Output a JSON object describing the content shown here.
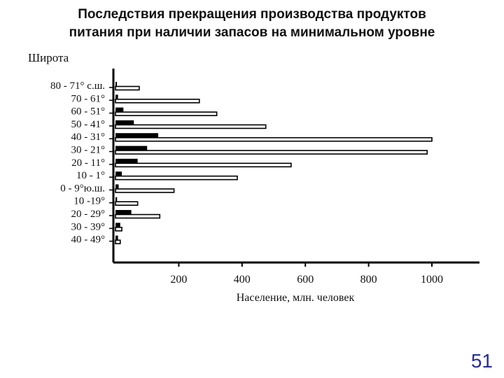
{
  "slide": {
    "title_line1": "Последствия прекращения производства продуктов",
    "title_line2": "питания  при наличии  запасов на минимальном уровне",
    "page_number": "51"
  },
  "chart_data": {
    "type": "bar",
    "orientation": "horizontal",
    "ylabel": "Широта",
    "xlabel": "Население,  млн.  человек",
    "xlim": [
      0,
      1150
    ],
    "x_ticks": [
      200,
      400,
      600,
      800,
      1000
    ],
    "categories": [
      "80 - 71° с.ш.",
      "70 - 61°",
      "60 - 51°",
      "50 - 41°",
      "40 - 31°",
      "30 - 21°",
      "20 - 11°",
      "10 - 1°",
      "0  - 9°ю.ш.",
      "10 -19°",
      "20 - 29°",
      "30 - 39°",
      "40 - 49°"
    ],
    "series": [
      {
        "style": "filled",
        "color": "#000000",
        "values": [
          3,
          8,
          25,
          58,
          135,
          100,
          70,
          20,
          10,
          5,
          50,
          15,
          8
        ]
      },
      {
        "style": "hollow",
        "color": "#000000",
        "values": [
          75,
          265,
          320,
          475,
          1000,
          985,
          555,
          385,
          185,
          70,
          140,
          20,
          15
        ]
      }
    ],
    "grid": false,
    "legend": "none"
  }
}
